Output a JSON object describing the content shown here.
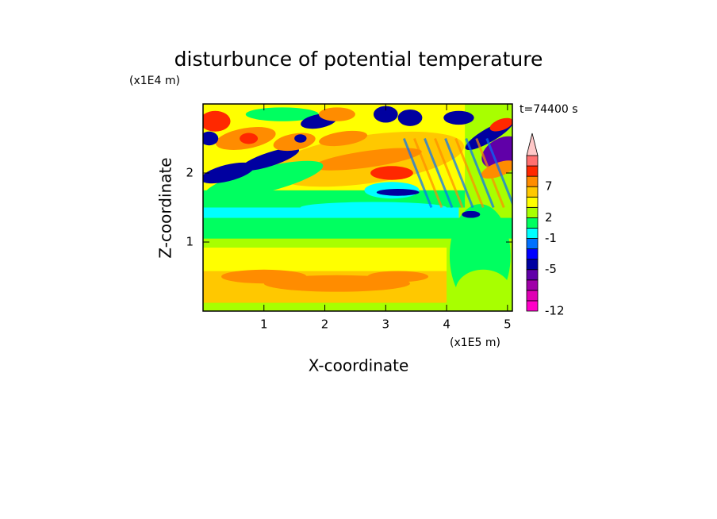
{
  "chart_data": {
    "type": "contour",
    "title": "disturbunce of potential temperature",
    "y_unit": "(x1E4 m)",
    "x_unit": "(x1E5 m)",
    "time_label": "t=74400 s",
    "x_label": "X-coordinate",
    "y_label": "Z-coordinate",
    "xlim": [
      0,
      5.08
    ],
    "ylim": [
      0,
      3
    ],
    "xticks": [
      1,
      2,
      3,
      4,
      5
    ],
    "yticks": [
      1,
      2
    ],
    "colorbar": {
      "colors": [
        "#ff00c8",
        "#e000b4",
        "#a000a8",
        "#6000a8",
        "#0000a0",
        "#0000ff",
        "#0070ff",
        "#00ffff",
        "#00ff60",
        "#a8ff00",
        "#ffff00",
        "#ffc800",
        "#ff8c00",
        "#ff2800",
        "#ff7070",
        "#ffc8c8"
      ],
      "levels": [
        -12,
        null,
        null,
        null,
        -5,
        null,
        null,
        -1,
        null,
        2,
        null,
        null,
        7,
        null,
        null,
        null
      ]
    }
  }
}
